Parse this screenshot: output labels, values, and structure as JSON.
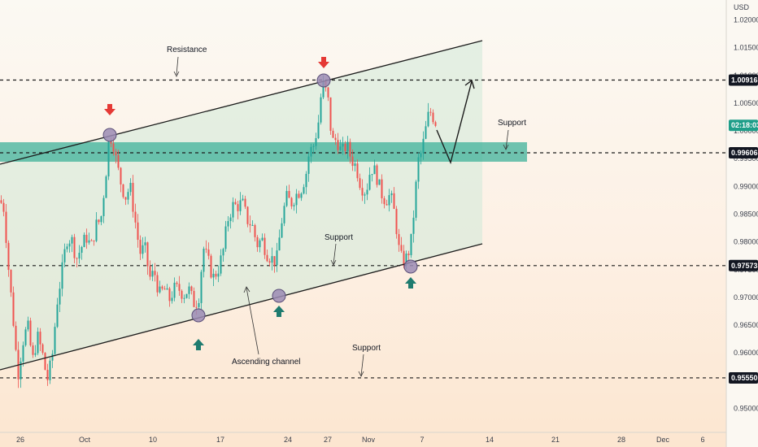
{
  "chart_data": {
    "type": "candlestick",
    "currency": "USD",
    "x_ticks": [
      "26",
      "Oct",
      "10",
      "17",
      "24",
      "27",
      "Nov",
      "7",
      "14",
      "21",
      "28",
      "Dec",
      "6"
    ],
    "y_ticks": [
      "1.02000",
      "1.01500",
      "1.01000",
      "1.00500",
      "1.00000",
      "0.99500",
      "0.99000",
      "0.98500",
      "0.98000",
      "0.97500",
      "0.97000",
      "0.96500",
      "0.96000",
      "0.95500",
      "0.95000"
    ],
    "ylim": [
      0.9475,
      1.0235
    ],
    "price_badges": [
      {
        "label": "1.00916",
        "value": 1.00916,
        "style": "dark"
      },
      {
        "label": "0.99606",
        "value": 0.99606,
        "style": "dark"
      },
      {
        "label": "0.97573",
        "value": 0.97573,
        "style": "dark"
      },
      {
        "label": "0.95550",
        "value": 0.9555,
        "style": "dark"
      },
      {
        "label": "02:18:03",
        "value": 1.001,
        "style": "teal"
      }
    ],
    "horizontal_levels": [
      1.00916,
      0.99606,
      0.97573,
      0.9555
    ],
    "support_zone": [
      0.9946,
      0.9982
    ],
    "annotations": [
      {
        "text": "Resistance"
      },
      {
        "text": "Support"
      },
      {
        "text": "Support"
      },
      {
        "text": "Support"
      },
      {
        "text": "Ascending channel"
      }
    ],
    "colors": {
      "up": "#26a69a",
      "down": "#ef5350",
      "zone": "#3fb29a",
      "channel_fill": "#cfe9d8",
      "marker": "#9b8bb4",
      "arrow_down": "#e53935",
      "arrow_up": "#1e7b6f",
      "badge_dark": "#131722",
      "badge_teal": "#1f9e89"
    },
    "price_path": [
      [
        0,
        0.9875
      ],
      [
        5,
        0.986
      ],
      [
        10,
        0.976
      ],
      [
        16,
        0.9665
      ],
      [
        22,
        0.956
      ],
      [
        28,
        0.962
      ],
      [
        34,
        0.965
      ],
      [
        40,
        0.9585
      ],
      [
        46,
        0.963
      ],
      [
        52,
        0.96
      ],
      [
        58,
        0.955
      ],
      [
        64,
        0.959
      ],
      [
        70,
        0.969
      ],
      [
        76,
        0.9745
      ],
      [
        82,
        0.9805
      ],
      [
        88,
        0.9805
      ],
      [
        94,
        0.977
      ],
      [
        100,
        0.979
      ],
      [
        106,
        0.981
      ],
      [
        112,
        0.979
      ],
      [
        118,
        0.983
      ],
      [
        124,
        0.984
      ],
      [
        130,
        0.992
      ],
      [
        134,
        0.9985
      ],
      [
        138,
        0.999
      ],
      [
        143,
        0.9945
      ],
      [
        148,
        0.991
      ],
      [
        154,
        0.988
      ],
      [
        160,
        0.99
      ],
      [
        166,
        0.984
      ],
      [
        172,
        0.978
      ],
      [
        178,
        0.979
      ],
      [
        184,
        0.9735
      ],
      [
        190,
        0.9745
      ],
      [
        196,
        0.9705
      ],
      [
        202,
        0.9715
      ],
      [
        208,
        0.9695
      ],
      [
        214,
        0.9715
      ],
      [
        220,
        0.9715
      ],
      [
        226,
        0.9705
      ],
      [
        232,
        0.9715
      ],
      [
        238,
        0.969
      ],
      [
        244,
        0.9695
      ],
      [
        250,
        0.979
      ],
      [
        256,
        0.9765
      ],
      [
        262,
        0.9735
      ],
      [
        268,
        0.975
      ],
      [
        274,
        0.978
      ],
      [
        280,
        0.984
      ],
      [
        286,
        0.9865
      ],
      [
        292,
        0.9865
      ],
      [
        298,
        0.987
      ],
      [
        304,
        0.984
      ],
      [
        310,
        0.983
      ],
      [
        316,
        0.9795
      ],
      [
        322,
        0.9805
      ],
      [
        328,
        0.978
      ],
      [
        334,
        0.977
      ],
      [
        340,
        0.9765
      ],
      [
        346,
        0.9835
      ],
      [
        352,
        0.988
      ],
      [
        358,
        0.987
      ],
      [
        364,
        0.9885
      ],
      [
        370,
        0.9895
      ],
      [
        376,
        0.992
      ],
      [
        380,
        0.996
      ],
      [
        386,
        0.9975
      ],
      [
        392,
        1.002
      ],
      [
        396,
        1.0085
      ],
      [
        400,
        1.0075
      ],
      [
        404,
        1.005
      ],
      [
        408,
        0.998
      ],
      [
        414,
        0.9985
      ],
      [
        420,
        0.996
      ],
      [
        426,
        0.9975
      ],
      [
        432,
        0.995
      ],
      [
        438,
        0.9935
      ],
      [
        444,
        0.99
      ],
      [
        450,
        0.989
      ],
      [
        456,
        0.9935
      ],
      [
        462,
        0.9925
      ],
      [
        468,
        0.989
      ],
      [
        474,
        0.9875
      ],
      [
        480,
        0.9885
      ],
      [
        486,
        0.9845
      ],
      [
        490,
        0.979
      ],
      [
        494,
        0.9768
      ],
      [
        498,
        0.9765
      ],
      [
        502,
        0.978
      ],
      [
        506,
        0.9805
      ],
      [
        510,
        0.9875
      ],
      [
        514,
        0.9945
      ],
      [
        518,
        0.996
      ],
      [
        522,
        0.999
      ],
      [
        526,
        1.0025
      ],
      [
        530,
        1.0035
      ],
      [
        534,
        1.002
      ],
      [
        538,
        1.001
      ]
    ]
  }
}
